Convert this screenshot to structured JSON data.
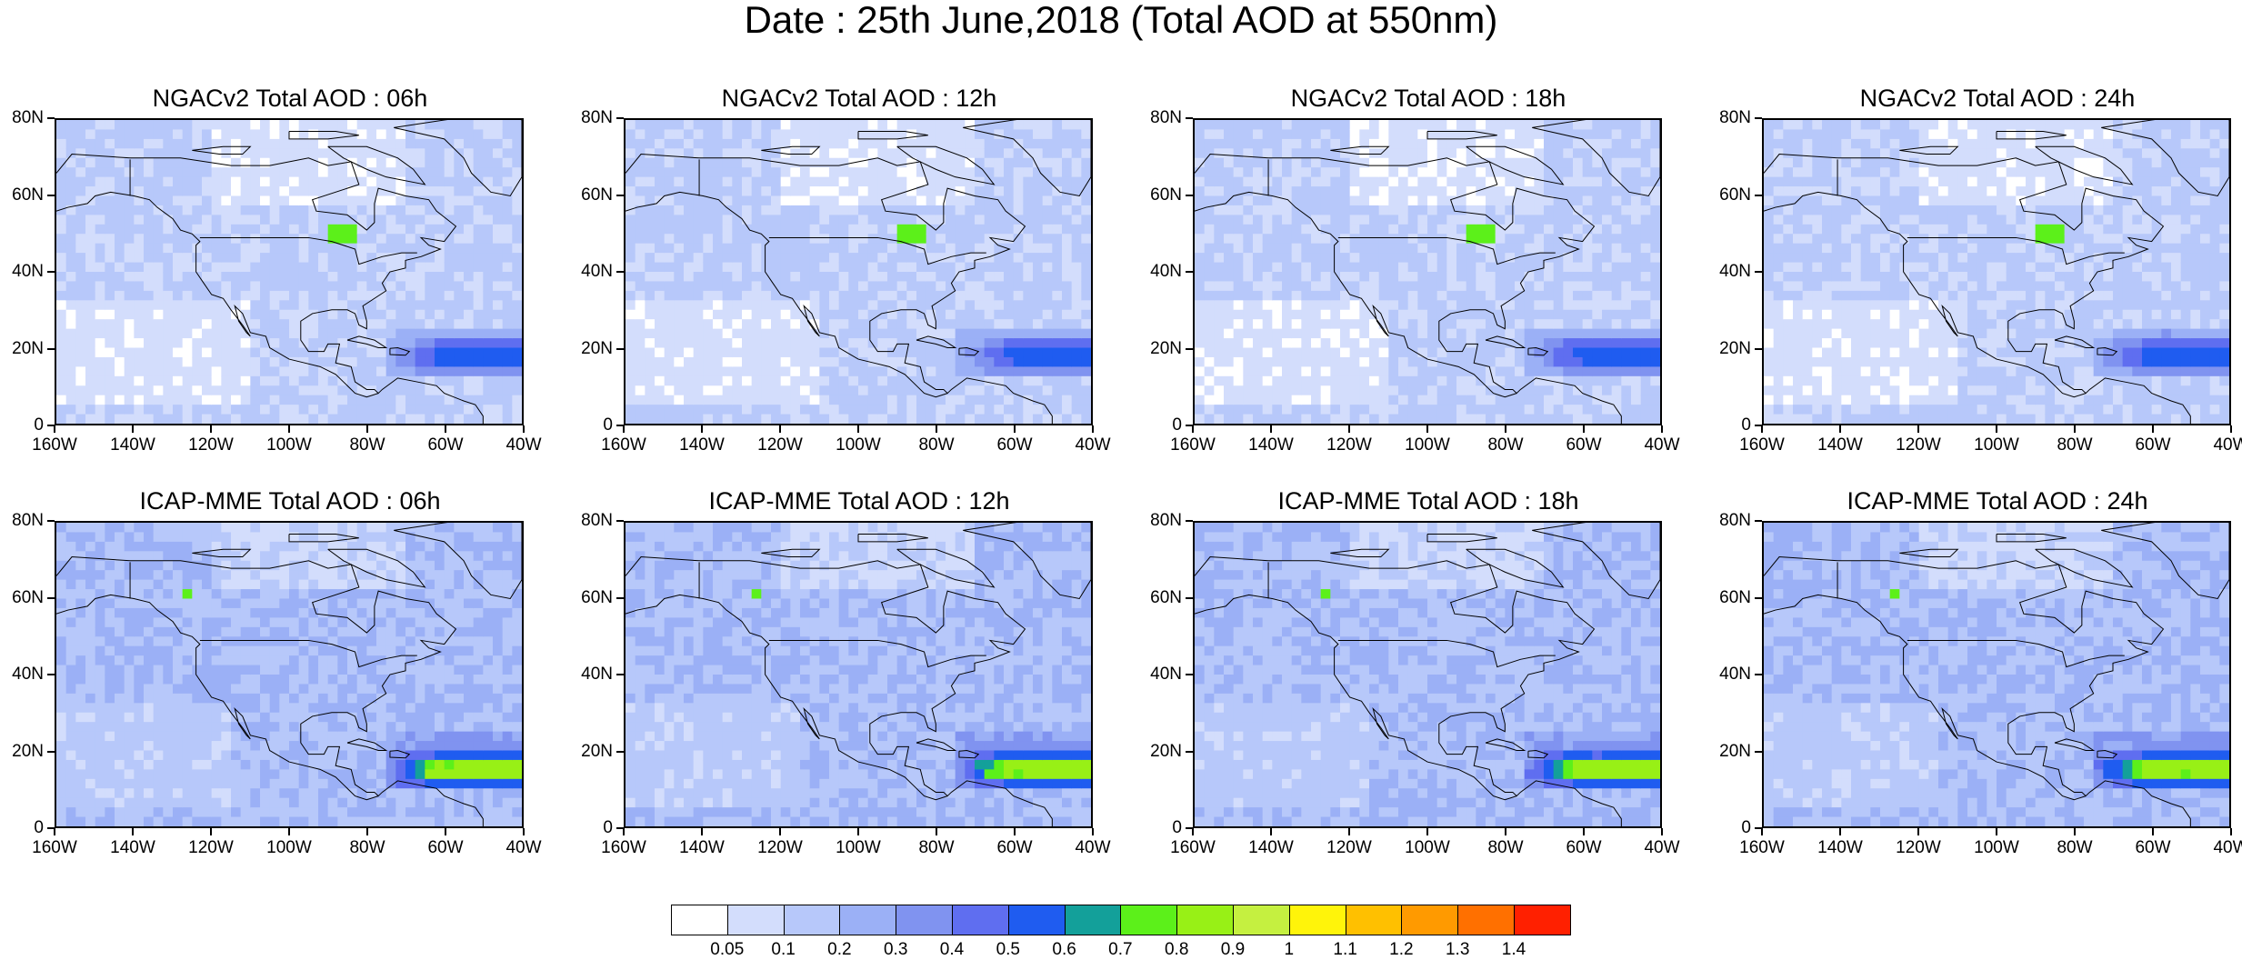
{
  "title": "Date : 25th June,2018 (Total AOD at 550nm)",
  "panels": [
    {
      "title": "NGACv2 Total AOD : 06h",
      "model": "ngac"
    },
    {
      "title": "NGACv2 Total AOD : 12h",
      "model": "ngac"
    },
    {
      "title": "NGACv2 Total AOD : 18h",
      "model": "ngac"
    },
    {
      "title": "NGACv2 Total AOD : 24h",
      "model": "ngac"
    },
    {
      "title": "ICAP-MME Total AOD : 06h",
      "model": "icap"
    },
    {
      "title": "ICAP-MME Total AOD : 12h",
      "model": "icap"
    },
    {
      "title": "ICAP-MME Total AOD : 18h",
      "model": "icap"
    },
    {
      "title": "ICAP-MME Total AOD : 24h",
      "model": "icap"
    }
  ],
  "axes": {
    "lat_labels": [
      "80N",
      "60N",
      "40N",
      "20N",
      "0"
    ],
    "lon_labels": [
      "160W",
      "140W",
      "120W",
      "100W",
      "80W",
      "60W",
      "40W"
    ],
    "lat_range": [
      0,
      80
    ],
    "lon_range": [
      -160,
      -40
    ]
  },
  "colorbar": {
    "labels": [
      "0.05",
      "0.1",
      "0.2",
      "0.3",
      "0.4",
      "0.5",
      "0.6",
      "0.7",
      "0.8",
      "0.9",
      "1",
      "1.1",
      "1.2",
      "1.3",
      "1.4"
    ],
    "colors": [
      "#ffffff",
      "#d3ddfc",
      "#b7c8fa",
      "#9bb0f6",
      "#8093f0",
      "#5f6ef0",
      "#1f5cf0",
      "#13a09a",
      "#5cf01a",
      "#98f016",
      "#c5f040",
      "#fff40a",
      "#ffc000",
      "#ff9a00",
      "#ff7000",
      "#ff2000"
    ]
  }
}
